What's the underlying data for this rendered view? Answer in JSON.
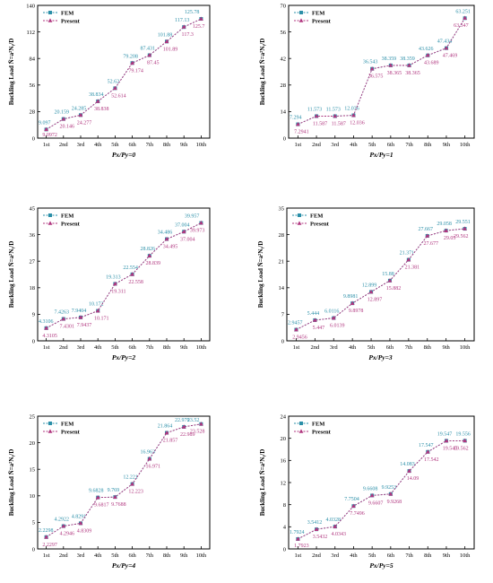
{
  "colors": {
    "fem": "#2b8fa8",
    "present": "#b0367f",
    "axis": "#000000"
  },
  "chart_data": [
    {
      "type": "line",
      "categories": [
        "1st",
        "2nd",
        "3rd",
        "4th",
        "5th",
        "6th",
        "7th",
        "8th",
        "9th",
        "10th"
      ],
      "xlabel": "Px/Py=0",
      "ylabel": "Buckling Load N̄=a²Nᵧ/D",
      "ylim": [
        0,
        140
      ],
      "yticks": [
        0,
        28,
        56,
        84,
        112,
        140
      ],
      "legend": [
        "FEM",
        "Present"
      ],
      "legend_position": "top-left",
      "series": [
        {
          "name": "FEM",
          "values": [
            9.097,
            20.159,
            24.285,
            38.834,
            52.62,
            79.208,
            87.431,
            101.88,
            117.13,
            125.78
          ],
          "labels": [
            "9.097",
            "20.159",
            "24.285",
            "38.834",
            "52.62",
            "79.208",
            "87.431",
            "101.88",
            "117.13",
            "125.78"
          ]
        },
        {
          "name": "Present",
          "values": [
            9.0972,
            20.146,
            24.277,
            38.838,
            52.614,
            79.174,
            87.45,
            101.89,
            117.3,
            125.7
          ],
          "labels": [
            "9.0972",
            "20.146",
            "24.277",
            "38.838",
            "52.614",
            "79.174",
            "87.45",
            "101.89",
            "117.3",
            "125.7"
          ]
        }
      ]
    },
    {
      "type": "line",
      "categories": [
        "1st",
        "2nd",
        "3rd",
        "4th",
        "5th",
        "6th",
        "7th",
        "8th",
        "9th",
        "10th"
      ],
      "xlabel": "Px/Py=1",
      "ylabel": "Buckling Load N̄=a²Nᵧ/D",
      "ylim": [
        0,
        70
      ],
      "yticks": [
        0,
        14,
        28,
        42,
        56,
        70
      ],
      "legend": [
        "FEM",
        "Present"
      ],
      "legend_position": "top-left",
      "series": [
        {
          "name": "FEM",
          "values": [
            7.294,
            11.573,
            11.573,
            12.036,
            36.543,
            38.359,
            38.359,
            43.626,
            47.434,
            63.251
          ],
          "labels": [
            "7.294",
            "11.573",
            "11.573",
            "12.036",
            "36.543",
            "38.359",
            "38.359",
            "43.626",
            "47.434",
            "63.251"
          ]
        },
        {
          "name": "Present",
          "values": [
            7.2941,
            11.587,
            11.587,
            12.036,
            36.575,
            38.365,
            38.365,
            43.689,
            47.469,
            63.347
          ],
          "labels": [
            "7.2941",
            "11.587",
            "11.587",
            "12.036",
            "36.575",
            "38.365",
            "38.365",
            "43.689",
            "47.469",
            "63.347"
          ]
        }
      ]
    },
    {
      "type": "line",
      "categories": [
        "1st",
        "2nd",
        "3rd",
        "4th",
        "5th",
        "6th",
        "7th",
        "8th",
        "9th",
        "10th"
      ],
      "xlabel": "Px/Py=2",
      "ylabel": "Buckling Load N̄=a²Nᵧ/D",
      "ylim": [
        0,
        45
      ],
      "yticks": [
        0,
        9,
        18,
        27,
        36,
        45
      ],
      "legend": [
        "FEM",
        "Present"
      ],
      "legend_position": "top-left",
      "series": [
        {
          "name": "FEM",
          "values": [
            4.3106,
            7.4263,
            7.9404,
            10.172,
            19.313,
            22.554,
            28.826,
            34.486,
            37.004,
            39.957
          ],
          "labels": [
            "4.3106",
            "7.4263",
            "7.9404",
            "10.172",
            "19.313",
            "22.554",
            "28.826",
            "34.486",
            "37.004",
            "39.957"
          ]
        },
        {
          "name": "Present",
          "values": [
            4.3105,
            7.4301,
            7.9437,
            10.171,
            19.311,
            22.558,
            28.839,
            34.495,
            37.004,
            39.973
          ],
          "labels": [
            "4.3105",
            "7.4301",
            "7.9437",
            "10.171",
            "19.311",
            "22.558",
            "28.839",
            "34.495",
            "37.004",
            "39.973"
          ]
        }
      ]
    },
    {
      "type": "line",
      "categories": [
        "1st",
        "2nd",
        "3rd",
        "4th",
        "5th",
        "6th",
        "7th",
        "8th",
        "9th",
        "10th"
      ],
      "xlabel": "Px/Py=3",
      "ylabel": "Buckling Load N̄=a²Nᵧ/D",
      "ylim": [
        0,
        35
      ],
      "yticks": [
        0,
        7,
        14,
        21,
        28,
        35
      ],
      "legend": [
        "FEM",
        "Present"
      ],
      "legend_position": "top-left",
      "series": [
        {
          "name": "FEM",
          "values": [
            2.9457,
            5.444,
            6.0116,
            9.8981,
            12.899,
            15.88,
            21.371,
            27.667,
            29.058,
            29.551
          ],
          "labels": [
            "2.9457",
            "5.444",
            "6.0116",
            "9.8981",
            "12.899",
            "15.88",
            "21.371",
            "27.667",
            "29.058",
            "29.551"
          ]
        },
        {
          "name": "Present",
          "values": [
            2.9456,
            5.447,
            6.0139,
            9.8978,
            12.897,
            15.882,
            21.381,
            27.677,
            29.05,
            29.562
          ],
          "labels": [
            "2.9456",
            "5.447",
            "6.0139",
            "9.8978",
            "12.897",
            "15.882",
            "21.381",
            "27.677",
            "29.05",
            "29.562"
          ]
        }
      ]
    },
    {
      "type": "line",
      "categories": [
        "1st",
        "2nd",
        "3rd",
        "4th",
        "5th",
        "6th",
        "7th",
        "8th",
        "9th",
        "10th"
      ],
      "xlabel": "Px/Py=4",
      "ylabel": "Buckling Load N̄=a²Nᵧ/D",
      "ylim": [
        0,
        25
      ],
      "yticks": [
        0,
        5,
        10,
        15,
        20,
        25
      ],
      "legend": [
        "FEM",
        "Present"
      ],
      "legend_position": "top-left",
      "series": [
        {
          "name": "FEM",
          "values": [
            2.2298,
            4.2922,
            4.8291,
            9.6828,
            9.769,
            12.221,
            16.963,
            21.864,
            22.979,
            23.52
          ],
          "labels": [
            "2.2298",
            "4.2922",
            "4.8291",
            "9.6828",
            "9.769",
            "12.221",
            "16.963",
            "21.864",
            "22.979",
            "23.52"
          ]
        },
        {
          "name": "Present",
          "values": [
            2.2297,
            4.2946,
            4.8309,
            9.6817,
            9.7688,
            12.223,
            16.971,
            21.857,
            22.989,
            23.528
          ],
          "labels": [
            "2.2297",
            "4.2946",
            "4.8309",
            "9.6817",
            "9.7688",
            "12.223",
            "16.971",
            "21.857",
            "22.989",
            "23.528"
          ]
        }
      ]
    },
    {
      "type": "line",
      "categories": [
        "1st",
        "2nd",
        "3rd",
        "4th",
        "5th",
        "6th",
        "7th",
        "8th",
        "9th",
        "10th"
      ],
      "xlabel": "Px/Py=5",
      "ylabel": "Buckling Load N̄=a²Nᵧ/D",
      "ylim": [
        0,
        24
      ],
      "yticks": [
        0,
        4,
        8,
        12,
        16,
        20,
        24
      ],
      "legend": [
        "FEM",
        "Present"
      ],
      "legend_position": "top-left",
      "series": [
        {
          "name": "FEM",
          "values": [
            1.7924,
            3.5412,
            4.0328,
            7.7504,
            9.6608,
            9.9253,
            14.083,
            17.547,
            19.547,
            19.556
          ],
          "labels": [
            "1.7924",
            "3.5412",
            "4.0328",
            "7.7504",
            "9.6608",
            "9.9253",
            "14.083",
            "17.547",
            "19.547",
            "19.556"
          ]
        },
        {
          "name": "Present",
          "values": [
            1.7923,
            3.5432,
            4.0343,
            7.7496,
            9.6607,
            9.9268,
            14.09,
            17.542,
            19.545,
            19.562
          ],
          "labels": [
            "1.7923",
            "3.5432",
            "4.0343",
            "7.7496",
            "9.6607",
            "9.9268",
            "14.09",
            "17.542",
            "19.545",
            "19.562"
          ]
        }
      ]
    }
  ]
}
